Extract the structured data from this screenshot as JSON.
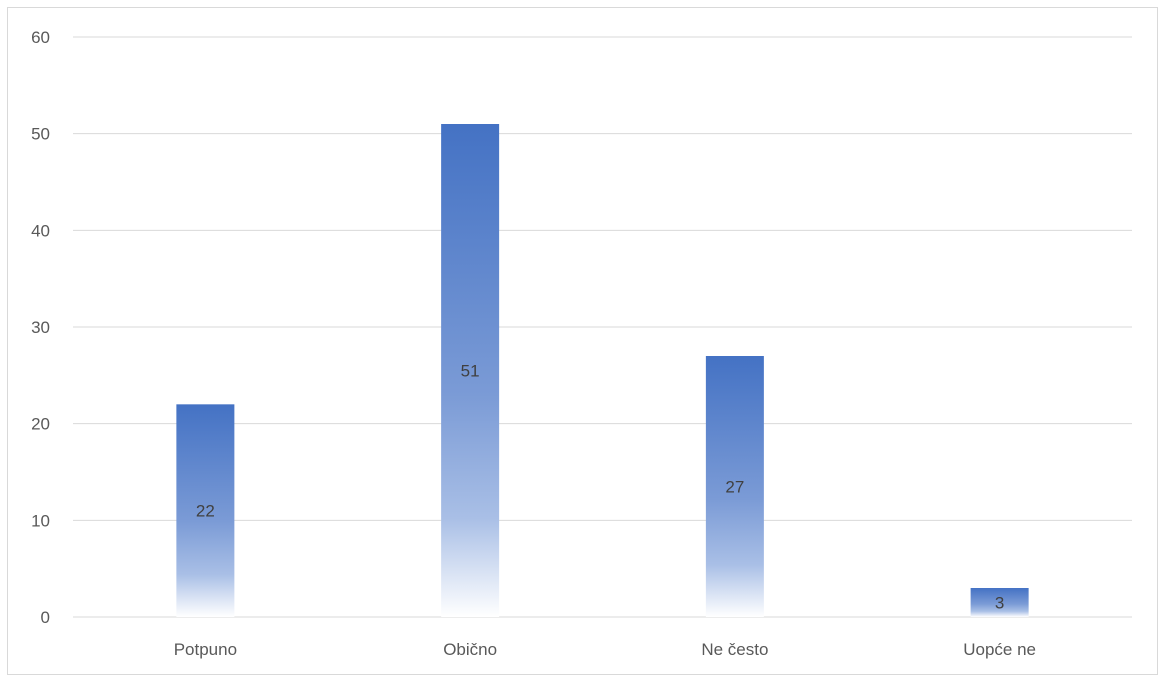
{
  "chart_data": {
    "type": "bar",
    "title": "",
    "xlabel": "",
    "ylabel": "",
    "categories": [
      "Potpuno",
      "Obično",
      "Ne često",
      "Uopće ne"
    ],
    "values": [
      22,
      51,
      27,
      3
    ],
    "data_labels": [
      "22",
      "51",
      "27",
      "3"
    ],
    "ylim": [
      0,
      60
    ],
    "yticks": [
      0,
      10,
      20,
      30,
      40,
      50,
      60
    ],
    "grid": true,
    "legend": "none",
    "bar_color": "#4472c4",
    "bar_fill": "gradient fading to white at base",
    "gridline_color": "#d9d9d9"
  }
}
